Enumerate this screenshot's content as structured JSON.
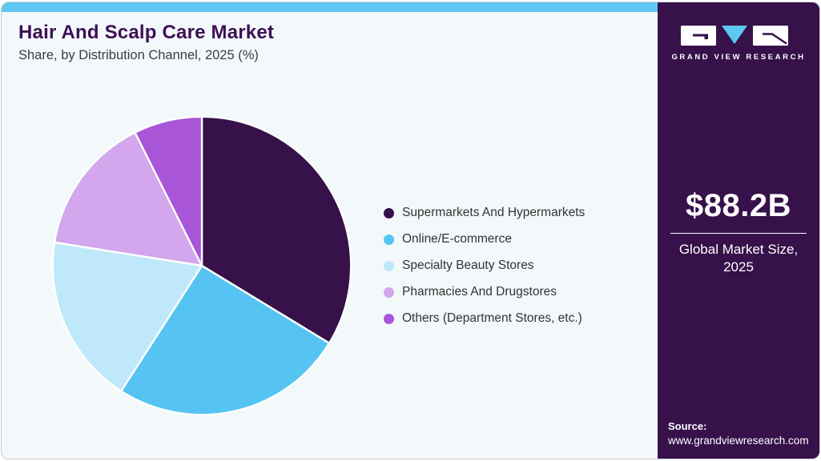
{
  "header": {
    "title": "Hair And Scalp Care Market",
    "subtitle": "Share, by Distribution Channel, 2025 (%)"
  },
  "chart_data": {
    "type": "pie",
    "title": "Hair And Scalp Care Market Share, by Distribution Channel, 2025 (%)",
    "labels": [
      "Supermarkets And Hypermarkets",
      "Online/E-commerce",
      "Specialty Beauty Stores",
      "Pharmacies And Drugstores",
      "Others (Department Stores, etc.)"
    ],
    "values": [
      33.7,
      25.4,
      18.4,
      15.1,
      7.4
    ],
    "unit": "%",
    "value_note": "shares estimated from arc angles; no numeric labels shown on chart",
    "colors": [
      "#36114a",
      "#55c4f2",
      "#bfe8fa",
      "#d2a7ed",
      "#a855d8"
    ],
    "start_angle": "12 o'clock",
    "direction": "clockwise",
    "legend_position": "right",
    "slice_border_color": "#ffffff"
  },
  "sidebar": {
    "logo_text": "GRAND VIEW RESEARCH",
    "market_size_value": "$88.2B",
    "market_size_label_line1": "Global Market Size,",
    "market_size_label_line2": "2025",
    "source_label": "Source:",
    "source_url": "www.grandviewresearch.com"
  },
  "theme": {
    "accent_cyan": "#5fc8f2",
    "sidebar_purple": "#36114a",
    "title_purple": "#3d1054",
    "card_background": "#f3f8fb"
  }
}
